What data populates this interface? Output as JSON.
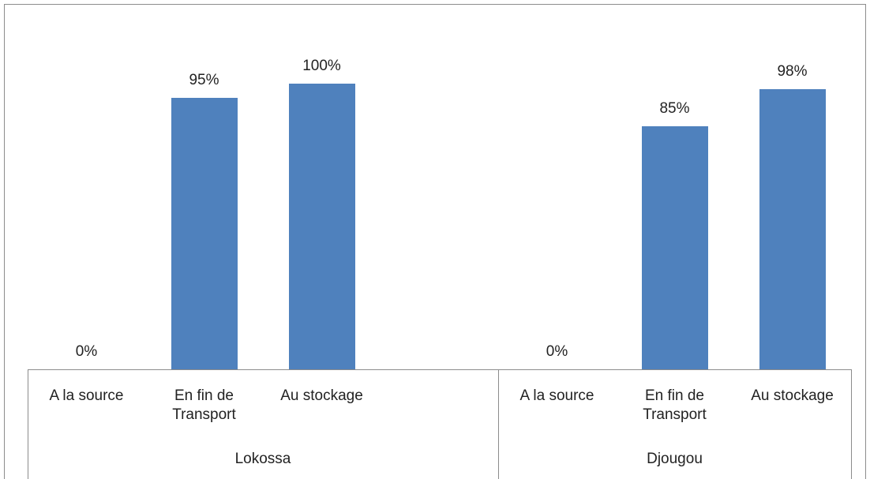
{
  "chart_data": {
    "type": "bar",
    "color": "#4f81bd",
    "ylim": [
      0,
      100
    ],
    "groups": [
      {
        "label": "Lokossa",
        "categories": [
          "A la source",
          "En fin de Transport",
          "Au stockage",
          null
        ],
        "values": [
          0,
          95,
          100,
          null
        ],
        "value_labels": [
          "0%",
          "95%",
          "100%",
          null
        ]
      },
      {
        "label": "Djougou",
        "categories": [
          "A la source",
          "En fin de Transport",
          "Au stockage"
        ],
        "values": [
          0,
          85,
          98
        ],
        "value_labels": [
          "0%",
          "85%",
          "98%"
        ]
      }
    ]
  }
}
